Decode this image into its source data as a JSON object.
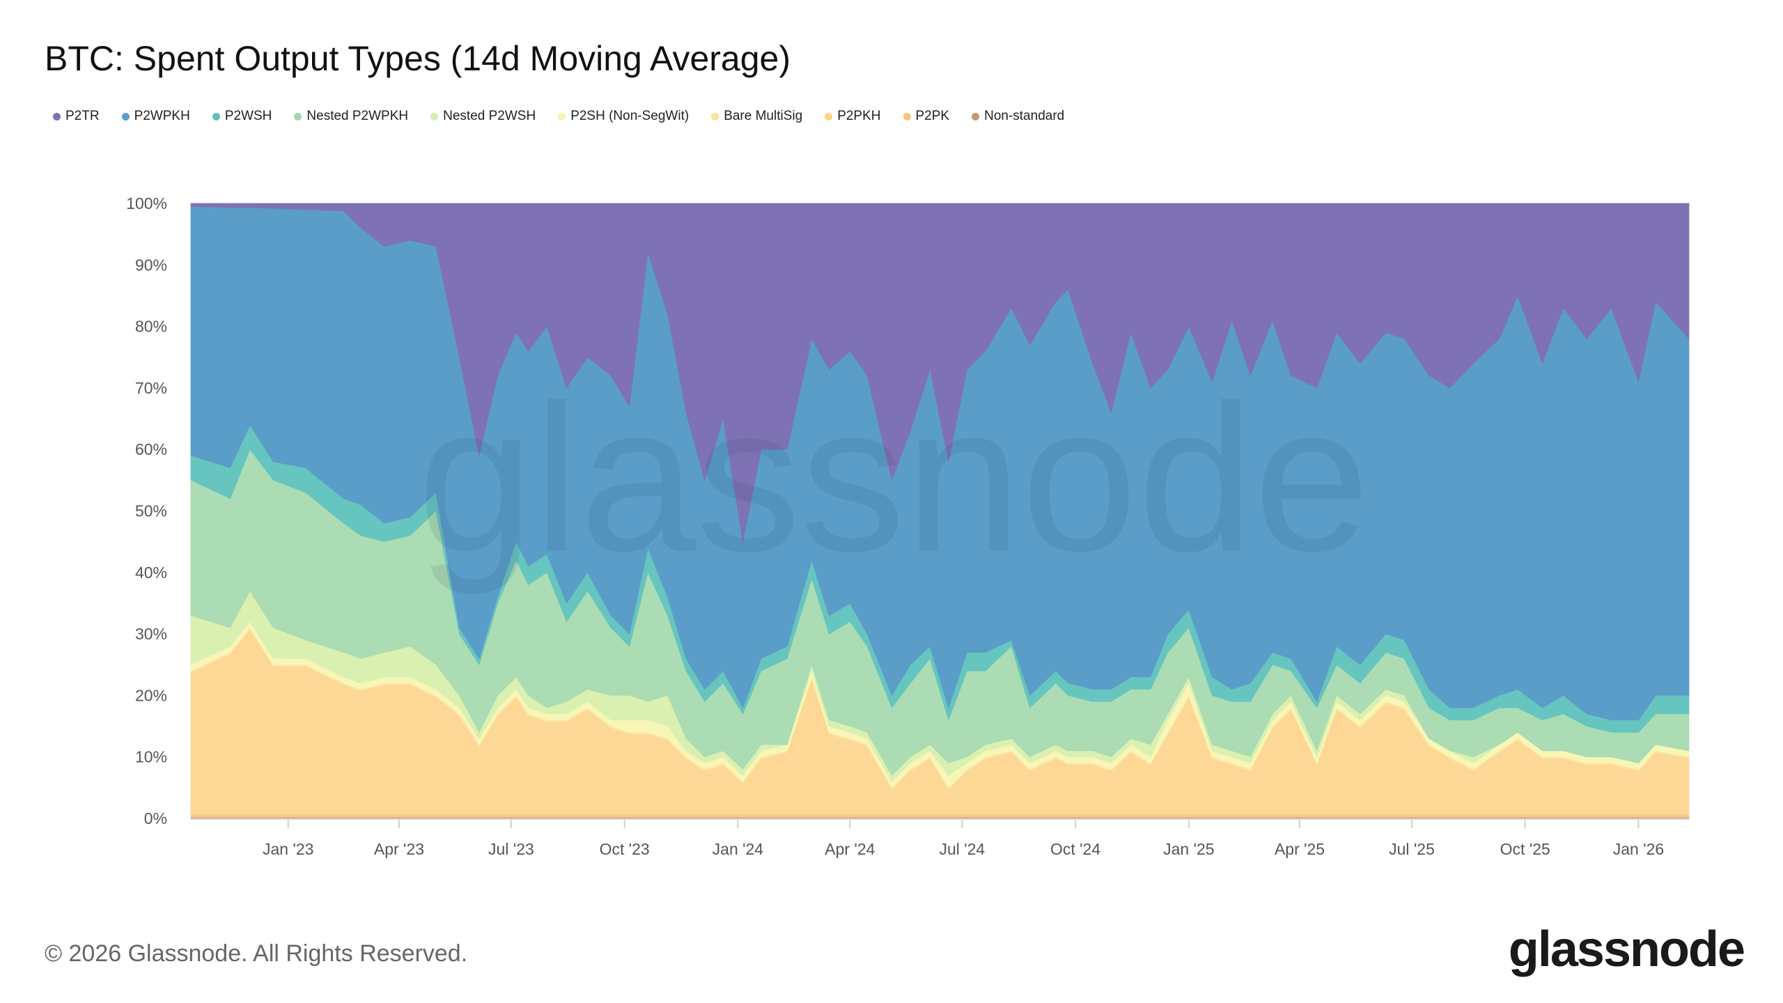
{
  "title": "BTC: Spent Output Types (14d Moving Average)",
  "footer": {
    "copyright": "© 2026 Glassnode. All Rights Reserved.",
    "logo_text": "glassnode"
  },
  "watermark": "glassnode",
  "legend": [
    {
      "label": "P2TR",
      "color": "#7e72b4"
    },
    {
      "label": "P2WPKH",
      "color": "#5a9dc8"
    },
    {
      "label": "P2WSH",
      "color": "#5fbfbc"
    },
    {
      "label": "Nested P2WPKH",
      "color": "#9fd8ac"
    },
    {
      "label": "Nested P2WSH",
      "color": "#d3eeae"
    },
    {
      "label": "P2SH (Non-SegWit)",
      "color": "#f6f4b0"
    },
    {
      "label": "Bare MultiSig",
      "color": "#fbe29c"
    },
    {
      "label": "P2PKH",
      "color": "#fdd28c"
    },
    {
      "label": "P2PK",
      "color": "#f8c384"
    },
    {
      "label": "Non-standard",
      "color": "#c49a6c"
    }
  ],
  "chart_data": {
    "type": "area",
    "stacked": true,
    "normalized": true,
    "title": "BTC: Spent Output Types (14d Moving Average)",
    "xlabel": "",
    "ylabel": "",
    "ylim": [
      0,
      100
    ],
    "xlim": [
      "2022-10-14",
      "2026-02-11"
    ],
    "y_ticks": [
      "0%",
      "10%",
      "20%",
      "30%",
      "40%",
      "50%",
      "60%",
      "70%",
      "80%",
      "90%",
      "100%"
    ],
    "x_ticks": [
      {
        "label": "Jan '23",
        "date": "2023-01-01"
      },
      {
        "label": "Apr '23",
        "date": "2023-04-01"
      },
      {
        "label": "Jul '23",
        "date": "2023-07-01"
      },
      {
        "label": "Oct '23",
        "date": "2023-10-01"
      },
      {
        "label": "Jan '24",
        "date": "2024-01-01"
      },
      {
        "label": "Apr '24",
        "date": "2024-04-01"
      },
      {
        "label": "Jul '24",
        "date": "2024-07-01"
      },
      {
        "label": "Oct '24",
        "date": "2024-10-01"
      },
      {
        "label": "Jan '25",
        "date": "2025-01-01"
      },
      {
        "label": "Apr '25",
        "date": "2025-04-01"
      },
      {
        "label": "Jul '25",
        "date": "2025-07-01"
      },
      {
        "label": "Oct '25",
        "date": "2025-10-01"
      },
      {
        "label": "Jan '26",
        "date": "2026-01-01"
      }
    ],
    "grid": false,
    "legend_position": "top-left",
    "x": [
      "2022-10-14",
      "2022-11-15",
      "2022-12-01",
      "2022-12-20",
      "2023-01-15",
      "2023-02-15",
      "2023-03-01",
      "2023-03-20",
      "2023-04-10",
      "2023-05-01",
      "2023-05-20",
      "2023-06-05",
      "2023-06-20",
      "2023-07-05",
      "2023-07-15",
      "2023-07-30",
      "2023-08-15",
      "2023-09-01",
      "2023-09-20",
      "2023-10-05",
      "2023-10-20",
      "2023-11-05",
      "2023-11-20",
      "2023-12-05",
      "2023-12-20",
      "2024-01-05",
      "2024-01-20",
      "2024-02-10",
      "2024-03-01",
      "2024-03-15",
      "2024-04-01",
      "2024-04-15",
      "2024-05-05",
      "2024-05-20",
      "2024-06-05",
      "2024-06-20",
      "2024-07-05",
      "2024-07-20",
      "2024-08-10",
      "2024-08-25",
      "2024-09-15",
      "2024-09-25",
      "2024-10-15",
      "2024-10-30",
      "2024-11-15",
      "2024-12-01",
      "2024-12-15",
      "2025-01-01",
      "2025-01-20",
      "2025-02-05",
      "2025-02-20",
      "2025-03-10",
      "2025-03-25",
      "2025-04-15",
      "2025-05-01",
      "2025-05-20",
      "2025-06-10",
      "2025-06-25",
      "2025-07-15",
      "2025-08-01",
      "2025-08-20",
      "2025-09-10",
      "2025-09-25",
      "2025-10-15",
      "2025-11-01",
      "2025-11-20",
      "2025-12-10",
      "2026-01-01",
      "2026-01-15",
      "2026-02-11"
    ],
    "series_stack_order_bottom_to_top": [
      "Non-standard",
      "P2PK",
      "P2PKH",
      "Bare MultiSig",
      "P2SH (Non-SegWit)",
      "Nested P2WSH",
      "Nested P2WPKH",
      "P2WSH",
      "P2WPKH",
      "P2TR"
    ],
    "series": [
      {
        "name": "P2TR",
        "color": "#7e72b4",
        "values": [
          0.5,
          0.7,
          0.7,
          0.8,
          1,
          1.2,
          4,
          7,
          6,
          7,
          25,
          41,
          28,
          21,
          24,
          20,
          30,
          25,
          28,
          33,
          8,
          18,
          34,
          45,
          35,
          55,
          40,
          40,
          22,
          27,
          24,
          28,
          45,
          37,
          27,
          42,
          27,
          24,
          17,
          23,
          16,
          14,
          26,
          34,
          21,
          30,
          27,
          20,
          29,
          19,
          28,
          19,
          28,
          30,
          21,
          26,
          21,
          22,
          28,
          30,
          26,
          22,
          15,
          26,
          17,
          22,
          17,
          29,
          16,
          22
        ]
      },
      {
        "name": "P2WPKH",
        "color": "#5a9dc8",
        "values": [
          40.5,
          42.3,
          35.3,
          41.2,
          42,
          46.8,
          45,
          45,
          45,
          40,
          44,
          33,
          36,
          34,
          35,
          37,
          35,
          35,
          39,
          37,
          48,
          46,
          40,
          34,
          41,
          27,
          34,
          32,
          36,
          40,
          41,
          42,
          35,
          38,
          45,
          40,
          46,
          49,
          54,
          57,
          60,
          64,
          53,
          45,
          56,
          47,
          43,
          46,
          48,
          60,
          50,
          54,
          46,
          51,
          51,
          49,
          49,
          49,
          51,
          52,
          56,
          58,
          64,
          56,
          63,
          61,
          67,
          55,
          64,
          58
        ]
      },
      {
        "name": "P2WSH",
        "color": "#66c5bf",
        "values": [
          4,
          5,
          4,
          3,
          4,
          4,
          5,
          3,
          3,
          3,
          1,
          1,
          1,
          3,
          3,
          3,
          3,
          3,
          2,
          2,
          4,
          3,
          2,
          2,
          2,
          1,
          2,
          2,
          3,
          3,
          3,
          2,
          2,
          3,
          2,
          2,
          3,
          3,
          1,
          2,
          2,
          2,
          2,
          2,
          2,
          2,
          3,
          3,
          3,
          2,
          3,
          2,
          2,
          1,
          3,
          3,
          3,
          3,
          3,
          2,
          2,
          2,
          3,
          2,
          3,
          2,
          2,
          2,
          3,
          3
        ]
      },
      {
        "name": "Nested P2WPKH",
        "color": "#abdcb3",
        "values": [
          22,
          21,
          23,
          24,
          24,
          21,
          20,
          18,
          18,
          25,
          10,
          11,
          15,
          19,
          18,
          22,
          13,
          16,
          11,
          8,
          21,
          13,
          11,
          9,
          11,
          9,
          12,
          14,
          14,
          14,
          17,
          14,
          11,
          12,
          14,
          7,
          14,
          12,
          15,
          8,
          10,
          9,
          8,
          9,
          8,
          9,
          10,
          8,
          8,
          8,
          9,
          8,
          4,
          7,
          5,
          5,
          6,
          6,
          5,
          5,
          6,
          6,
          4,
          5,
          6,
          5,
          4,
          5,
          5,
          6
        ]
      },
      {
        "name": "Nested P2WSH",
        "color": "#d9f0b0",
        "values": [
          8,
          3,
          5,
          5,
          3,
          4,
          4,
          4,
          5,
          4,
          2,
          1,
          2,
          2,
          2,
          1,
          2,
          2,
          4,
          4,
          3,
          5,
          2,
          1,
          1,
          1,
          1,
          0,
          1,
          1,
          1,
          1,
          1,
          1,
          1,
          2,
          1,
          1,
          1,
          1,
          1,
          1,
          1,
          1,
          1,
          2,
          1,
          1,
          1,
          1,
          1,
          1,
          1,
          1,
          1,
          1,
          1,
          1,
          0,
          0,
          1,
          0,
          0,
          0,
          0,
          0,
          0,
          0,
          0,
          0
        ]
      },
      {
        "name": "P2SH (Non-SegWit)",
        "color": "#f7f6b6",
        "values": [
          1,
          1,
          1,
          1,
          1,
          1,
          1,
          1,
          1,
          1,
          1,
          1,
          1,
          1,
          1,
          1,
          1,
          1,
          1,
          2,
          2,
          2,
          1,
          1,
          1,
          1,
          1,
          1,
          1,
          1,
          1,
          1,
          1,
          1,
          1,
          2,
          1,
          1,
          1,
          1,
          1,
          1,
          1,
          1,
          1,
          1,
          2,
          2,
          1,
          1,
          1,
          1,
          1,
          1,
          1,
          1,
          1,
          1,
          1,
          1,
          1,
          1,
          1,
          1,
          1,
          1,
          1,
          1,
          1,
          1
        ]
      },
      {
        "name": "Bare MultiSig",
        "color": "#fbe3a0",
        "values": [
          0.3,
          0.3,
          0.3,
          0.3,
          0.3,
          0.3,
          0.3,
          0.3,
          0.3,
          0.3,
          0.3,
          0.3,
          0.3,
          0.3,
          0.3,
          0.3,
          0.3,
          0.3,
          0.3,
          0.3,
          0.3,
          0.3,
          0.3,
          0.3,
          0.3,
          0.3,
          0.3,
          0.3,
          0.3,
          0.3,
          0.3,
          0.3,
          0.3,
          0.3,
          0.3,
          0.3,
          0.3,
          0.3,
          0.3,
          0.3,
          0.3,
          0.3,
          0.3,
          0.3,
          0.3,
          0.3,
          0.3,
          0.3,
          0.3,
          0.3,
          0.3,
          0.3,
          0.3,
          0.3,
          0.3,
          0.3,
          0.3,
          0.3,
          0.3,
          0.3,
          0.3,
          0.3,
          0.3,
          0.3,
          0.3,
          0.3,
          0.3,
          0.3,
          0.3,
          0.3
        ]
      },
      {
        "name": "P2PKH",
        "color": "#fdd795",
        "values": [
          23,
          26,
          30,
          24,
          24,
          21,
          20,
          21,
          21,
          19,
          16,
          11,
          16,
          19,
          16,
          15,
          15,
          17,
          14,
          13,
          13,
          12,
          9,
          7,
          8,
          5,
          9,
          10,
          22,
          13,
          12,
          11,
          4,
          7,
          9,
          4,
          7,
          9,
          10,
          7,
          9,
          8,
          8,
          7,
          10,
          8,
          13,
          19,
          9,
          8,
          7,
          14,
          17,
          8,
          17,
          14,
          18,
          17,
          11,
          9,
          7,
          10,
          12,
          9,
          9,
          8,
          8,
          7,
          10,
          9
        ]
      },
      {
        "name": "P2PK",
        "color": "#f9c88a",
        "values": [
          0.5,
          0.5,
          0.5,
          0.5,
          0.5,
          0.5,
          0.5,
          0.5,
          0.5,
          0.5,
          0.5,
          0.5,
          0.5,
          0.5,
          0.5,
          0.5,
          0.5,
          0.5,
          0.5,
          0.5,
          0.5,
          0.5,
          0.5,
          0.5,
          0.5,
          0.5,
          0.5,
          0.5,
          0.5,
          0.5,
          0.5,
          0.5,
          0.5,
          0.5,
          0.5,
          0.5,
          0.5,
          0.5,
          0.5,
          0.5,
          0.5,
          0.5,
          0.5,
          0.5,
          0.5,
          0.5,
          0.5,
          0.5,
          0.5,
          0.5,
          0.5,
          0.5,
          0.5,
          0.5,
          0.5,
          0.5,
          0.5,
          0.5,
          0.5,
          0.5,
          0.5,
          0.5,
          0.5,
          0.5,
          0.5,
          0.5,
          0.5,
          0.5,
          0.5,
          0.5
        ]
      },
      {
        "name": "Non-standard",
        "color": "#c9a27a",
        "values": [
          0.2,
          0.2,
          0.2,
          0.2,
          0.2,
          0.2,
          0.2,
          0.2,
          0.2,
          0.2,
          0.2,
          0.2,
          0.2,
          0.2,
          0.2,
          0.2,
          0.2,
          0.2,
          0.2,
          0.2,
          0.2,
          0.2,
          0.2,
          0.2,
          0.2,
          0.2,
          0.2,
          0.2,
          0.2,
          0.2,
          0.2,
          0.2,
          0.2,
          0.2,
          0.2,
          0.2,
          0.2,
          0.2,
          0.2,
          0.2,
          0.2,
          0.2,
          0.2,
          0.2,
          0.2,
          0.2,
          0.2,
          0.2,
          0.2,
          0.2,
          0.2,
          0.2,
          0.2,
          0.2,
          0.2,
          0.2,
          0.2,
          0.2,
          0.2,
          0.2,
          0.2,
          0.2,
          0.2,
          0.2,
          0.2,
          0.2,
          0.2,
          0.2,
          0.2,
          0.2
        ]
      }
    ]
  }
}
